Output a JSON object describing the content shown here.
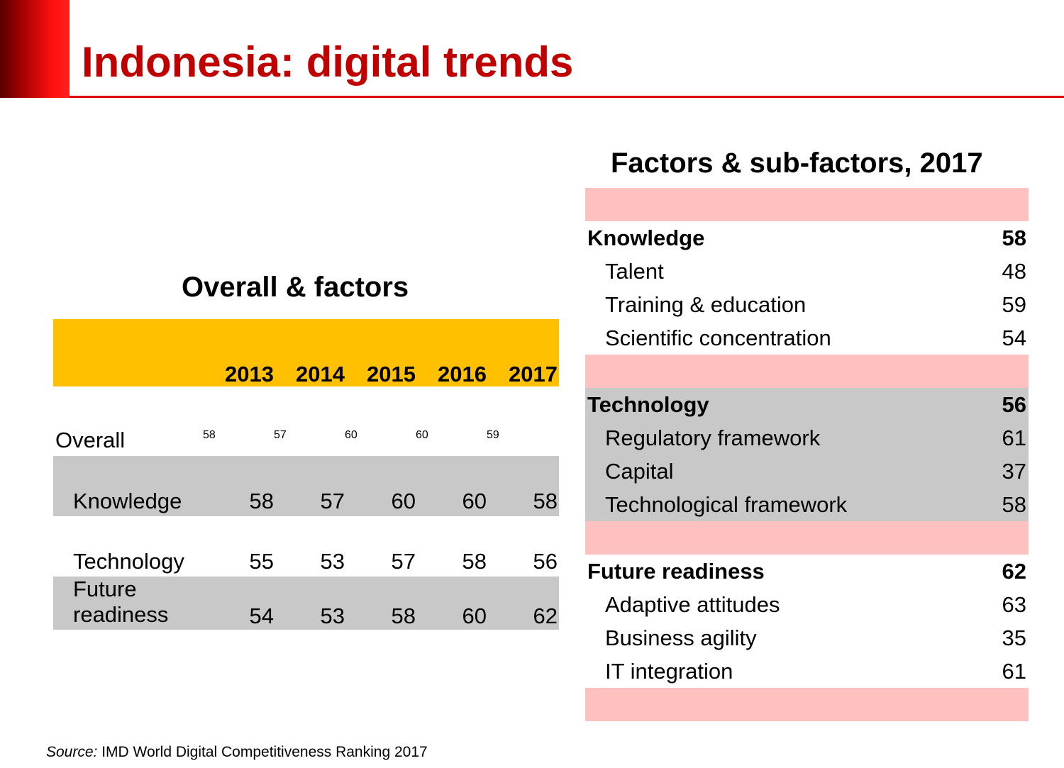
{
  "title": "Indonesia: digital trends",
  "colors": {
    "title": "#c00000",
    "header_yellow": "#ffc000",
    "row_gray": "#c8c8c8",
    "row_pink": "#ffc0c0"
  },
  "left_table": {
    "heading": "Overall & factors",
    "years": [
      "2013",
      "2014",
      "2015",
      "2016",
      "2017"
    ],
    "rows": [
      {
        "label": "Overall",
        "values": [
          "58",
          "57",
          "60",
          "60",
          "59"
        ]
      },
      {
        "label": "Knowledge",
        "values": [
          "58",
          "57",
          "60",
          "60",
          "58"
        ]
      },
      {
        "label": "Technology",
        "values": [
          "55",
          "53",
          "57",
          "58",
          "56"
        ]
      },
      {
        "label_line1": "Future",
        "label_line2": "readiness",
        "values": [
          "54",
          "53",
          "58",
          "60",
          "62"
        ]
      }
    ]
  },
  "right_table": {
    "heading": "Factors & sub-factors, 2017",
    "groups": [
      {
        "label": "Knowledge",
        "value": "58",
        "subs": [
          {
            "label": "Talent",
            "value": "48"
          },
          {
            "label": "Training & education",
            "value": "59"
          },
          {
            "label": "Scientific concentration",
            "value": "54"
          }
        ]
      },
      {
        "label": "Technology",
        "value": "56",
        "subs": [
          {
            "label": "Regulatory framework",
            "value": "61"
          },
          {
            "label": "Capital",
            "value": "37"
          },
          {
            "label": "Technological framework",
            "value": "58"
          }
        ]
      },
      {
        "label": "Future readiness",
        "value": "62",
        "subs": [
          {
            "label": "Adaptive attitudes",
            "value": "63"
          },
          {
            "label": "Business agility",
            "value": "35"
          },
          {
            "label": "IT integration",
            "value": "61"
          }
        ]
      }
    ]
  },
  "source": {
    "prefix": "Source:",
    "text": " IMD World Digital Competitiveness Ranking 2017"
  }
}
